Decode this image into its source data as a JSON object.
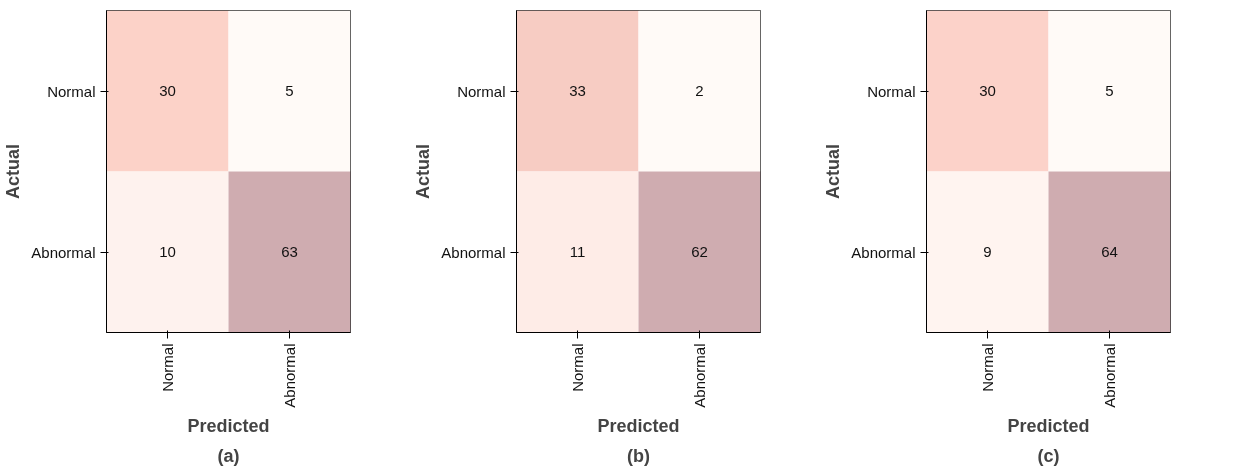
{
  "chart_data": [
    {
      "type": "heatmap",
      "categories": [
        "Normal",
        "Abnormal"
      ],
      "y_categories": [
        "Normal",
        "Abnormal"
      ],
      "cells": [
        [
          30,
          5
        ],
        [
          10,
          63
        ]
      ],
      "xlabel": "Predicted",
      "ylabel": "Actual",
      "annotations": [
        "(a)"
      ],
      "data_labels": true,
      "grid": false
    },
    {
      "type": "heatmap",
      "categories": [
        "Normal",
        "Abnormal"
      ],
      "y_categories": [
        "Normal",
        "Abnormal"
      ],
      "cells": [
        [
          33,
          2
        ],
        [
          11,
          62
        ]
      ],
      "xlabel": "Predicted",
      "ylabel": "Actual",
      "annotations": [
        "(b)"
      ],
      "data_labels": true,
      "grid": false
    },
    {
      "type": "heatmap",
      "categories": [
        "Normal",
        "Abnormal"
      ],
      "y_categories": [
        "Normal",
        "Abnormal"
      ],
      "cells": [
        [
          30,
          5
        ],
        [
          9,
          64
        ]
      ],
      "xlabel": "Predicted",
      "ylabel": "Actual",
      "annotations": [
        "(c)"
      ],
      "data_labels": true,
      "grid": false
    }
  ]
}
